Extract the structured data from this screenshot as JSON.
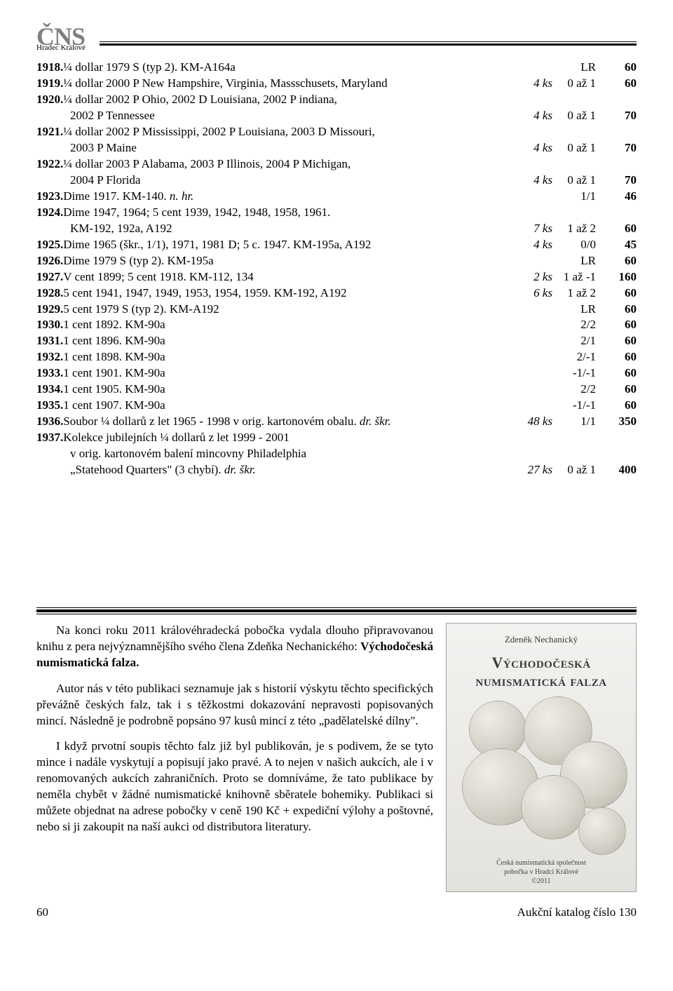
{
  "header": {
    "org": "ČNS",
    "branch": "Hradec Králové"
  },
  "catalog": [
    {
      "lot": "1918.",
      "cont": false,
      "desc": "¼ dollar 1979 S (typ 2). KM-A164a",
      "qty": "",
      "grade": "LR",
      "price": "60"
    },
    {
      "lot": "1919.",
      "cont": false,
      "desc": "¼ dollar 2000 P New Hampshire, Virginia, Massschusets, Maryland",
      "qty": "4 ks",
      "grade": "0 až 1",
      "price": "60"
    },
    {
      "lot": "1920.",
      "cont": false,
      "desc": "¼ dollar 2002 P Ohio, 2002 D Louisiana, 2002 P indiana,",
      "qty": "",
      "grade": "",
      "price": ""
    },
    {
      "lot": "",
      "cont": true,
      "desc": "2002 P Tennessee",
      "qty": "4 ks",
      "grade": "0 až 1",
      "price": "70"
    },
    {
      "lot": "1921.",
      "cont": false,
      "desc": "¼ dollar 2002 P Mississippi, 2002 P Louisiana, 2003 D Missouri,",
      "qty": "",
      "grade": "",
      "price": ""
    },
    {
      "lot": "",
      "cont": true,
      "desc": "2003 P Maine",
      "qty": "4 ks",
      "grade": "0 až 1",
      "price": "70"
    },
    {
      "lot": "1922.",
      "cont": false,
      "desc": "¼ dollar 2003 P Alabama, 2003 P Illinois, 2004 P Michigan,",
      "qty": "",
      "grade": "",
      "price": ""
    },
    {
      "lot": "",
      "cont": true,
      "desc": "2004 P Florida",
      "qty": "4 ks",
      "grade": "0 až 1",
      "price": "70"
    },
    {
      "lot": "1923.",
      "cont": false,
      "desc": "Dime 1917. KM-140. <span class='it'>n. hr.</span>",
      "qty": "",
      "grade": "1/1",
      "price": "46"
    },
    {
      "lot": "1924.",
      "cont": false,
      "desc": "Dime 1947, 1964; 5 cent 1939, 1942, 1948, 1958, 1961.",
      "qty": "",
      "grade": "",
      "price": ""
    },
    {
      "lot": "",
      "cont": true,
      "desc": "KM-192, 192a, A192",
      "qty": "7 ks",
      "grade": "1 až 2",
      "price": "60"
    },
    {
      "lot": "1925.",
      "cont": false,
      "desc": "Dime 1965 (škr., 1/1), 1971, 1981 D; 5 c. 1947. KM-195a, A192",
      "qty": "4 ks",
      "grade": "0/0",
      "price": "45"
    },
    {
      "lot": "1926.",
      "cont": false,
      "desc": "Dime 1979 S (typ 2). KM-195a",
      "qty": "",
      "grade": "LR",
      "price": "60"
    },
    {
      "lot": "1927.",
      "cont": false,
      "desc": "V cent 1899; 5 cent 1918. KM-112, 134",
      "qty": "2 ks",
      "grade": "1 až -1",
      "price": "160"
    },
    {
      "lot": "1928.",
      "cont": false,
      "desc": "5 cent 1941, 1947, 1949, 1953, 1954, 1959. KM-192, A192",
      "qty": "6 ks",
      "grade": "1 až 2",
      "price": "60"
    },
    {
      "lot": "1929.",
      "cont": false,
      "desc": "5 cent 1979 S (typ 2). KM-A192",
      "qty": "",
      "grade": "LR",
      "price": "60"
    },
    {
      "lot": "1930.",
      "cont": false,
      "desc": "1 cent 1892. KM-90a",
      "qty": "",
      "grade": "2/2",
      "price": "60"
    },
    {
      "lot": "1931.",
      "cont": false,
      "desc": "1 cent 1896. KM-90a",
      "qty": "",
      "grade": "2/1",
      "price": "60"
    },
    {
      "lot": "1932.",
      "cont": false,
      "desc": "1 cent 1898. KM-90a",
      "qty": "",
      "grade": "2/-1",
      "price": "60"
    },
    {
      "lot": "1933.",
      "cont": false,
      "desc": "1 cent 1901. KM-90a",
      "qty": "",
      "grade": "-1/-1",
      "price": "60"
    },
    {
      "lot": "1934.",
      "cont": false,
      "desc": "1 cent 1905. KM-90a",
      "qty": "",
      "grade": "2/2",
      "price": "60"
    },
    {
      "lot": "1935.",
      "cont": false,
      "desc": "1 cent 1907. KM-90a",
      "qty": "",
      "grade": "-1/-1",
      "price": "60"
    },
    {
      "lot": "1936.",
      "cont": false,
      "desc": "Soubor ¼ dollarů z let 1965 - 1998 v orig. kartonovém obalu. <span class='it'>dr. škr.</span>",
      "qty": "48 ks",
      "grade": "1/1",
      "price": "350"
    },
    {
      "lot": "1937.",
      "cont": false,
      "desc": "Kolekce jubilejních ¼ dollarů z let 1999 - 2001",
      "qty": "",
      "grade": "",
      "price": ""
    },
    {
      "lot": "",
      "cont": true,
      "desc": "v orig. kartonovém balení mincovny Philadelphia",
      "qty": "",
      "grade": "",
      "price": ""
    },
    {
      "lot": "",
      "cont": true,
      "desc": "„Statehood Quarters\" (3 chybí). <span class='it'>dr. škr.</span>",
      "qty": "27 ks",
      "grade": "0 až 1",
      "price": "400"
    }
  ],
  "promo": {
    "p1_a": "Na konci roku 2011 královéhradecká pobočka vydala dlouho připravovanou knihu z pera nejvýznamnějšího svého člena Zdeňka Nechanického: ",
    "p1_b": "Východočeská numismatická falza.",
    "p2": "Autor nás v této publikaci seznamuje jak s historií výskytu těchto specifických převážně českých falz, tak i s těžkostmi dokazování nepravosti popisovaných mincí. Následně je podrobně popsáno 97 kusů mincí z této „padělatelské dílny\".",
    "p3": "I když prvotní soupis těchto falz již byl publikován, je s podivem, že se tyto mince i nadále vyskytují a popisují jako pravé. A to nejen v našich aukcích, ale i v renomovaných aukcích zahraničních. Proto se domníváme, že tato publikace by neměla chybět v žádné numismatické knihovně sběratele bohemiky. Publikaci si můžete objednat na adrese pobočky v ceně 190 Kč + expediční výlohy a poštovné, nebo si ji zakoupit na naší aukci od distributora literatury."
  },
  "book": {
    "author": "Zdeněk Nechanický",
    "title1": "Východočeská",
    "title2": "numismatická falza",
    "foot1": "Česká numismatická společnost",
    "foot2": "pobočka v Hradci Králové",
    "foot3": "©2011"
  },
  "footer": {
    "pageno": "60",
    "right": "Aukční katalog číslo 130"
  }
}
